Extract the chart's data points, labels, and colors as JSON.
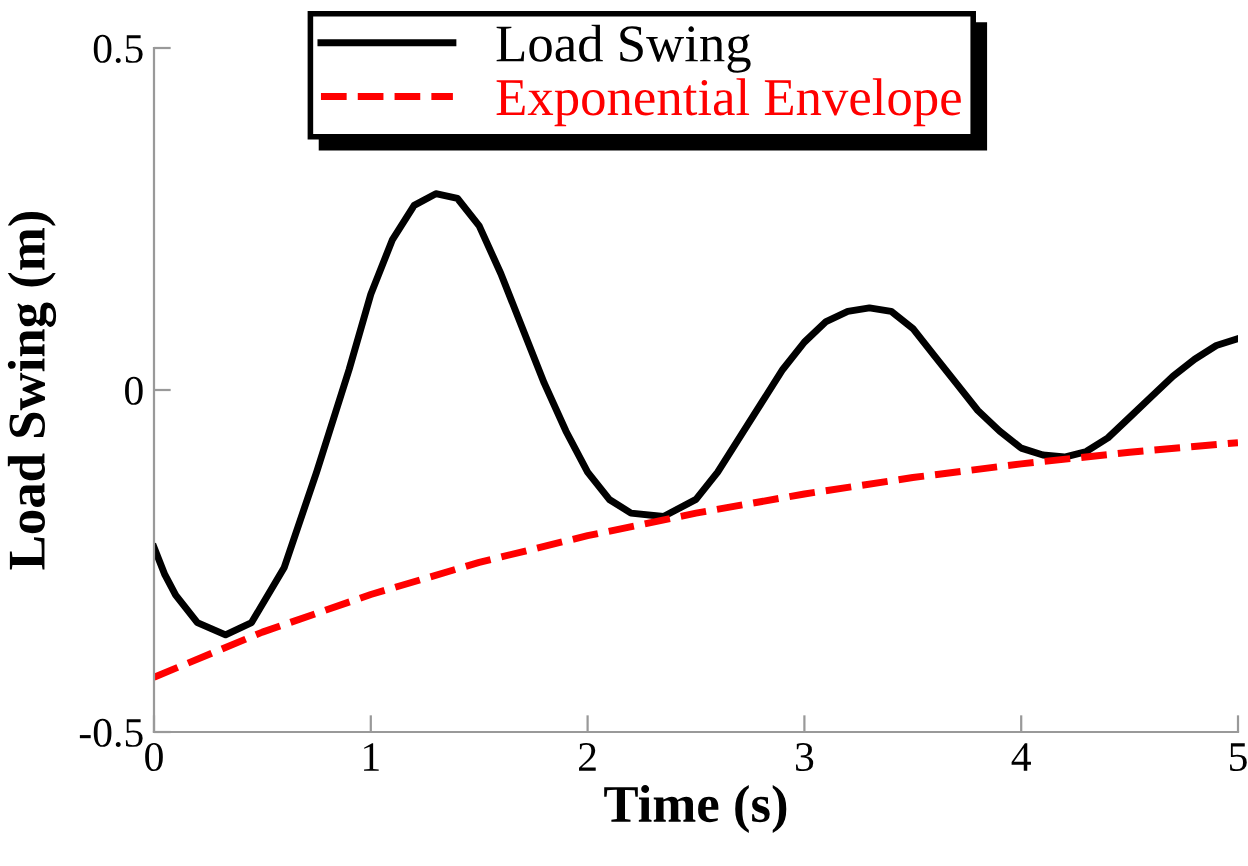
{
  "chart_data": {
    "type": "line",
    "xlabel": "Time (s)",
    "ylabel": "Load Swing (m)",
    "xlim": [
      0,
      5
    ],
    "xticks": [
      0,
      1,
      2,
      3,
      4,
      5
    ],
    "ylim": [
      -0.5,
      0.5
    ],
    "yticks": [
      -0.5,
      0,
      0.5
    ],
    "grid": false,
    "legend": "top",
    "series": [
      {
        "name": "Load Swing",
        "color": "#000000",
        "line_style": "solid",
        "x": [
          0,
          0.05,
          0.1,
          0.2,
          0.33,
          0.45,
          0.6,
          0.75,
          0.9,
          1.0,
          1.1,
          1.2,
          1.3,
          1.4,
          1.5,
          1.6,
          1.7,
          1.8,
          1.9,
          2.0,
          2.1,
          2.2,
          2.35,
          2.5,
          2.6,
          2.7,
          2.8,
          2.9,
          3.0,
          3.1,
          3.2,
          3.3,
          3.4,
          3.5,
          3.6,
          3.7,
          3.8,
          3.9,
          4.0,
          4.1,
          4.2,
          4.3,
          4.4,
          4.5,
          4.6,
          4.7,
          4.8,
          4.9,
          5.0
        ],
        "values": [
          -0.23,
          -0.27,
          -0.3,
          -0.34,
          -0.358,
          -0.34,
          -0.26,
          -0.12,
          0.03,
          0.14,
          0.22,
          0.27,
          0.287,
          0.28,
          0.24,
          0.17,
          0.09,
          0.01,
          -0.06,
          -0.12,
          -0.16,
          -0.18,
          -0.185,
          -0.16,
          -0.12,
          -0.07,
          -0.02,
          0.03,
          0.07,
          0.1,
          0.115,
          0.12,
          0.115,
          0.09,
          0.05,
          0.01,
          -0.03,
          -0.06,
          -0.085,
          -0.095,
          -0.098,
          -0.09,
          -0.07,
          -0.04,
          -0.01,
          0.02,
          0.045,
          0.065,
          0.075
        ]
      },
      {
        "name": "Exponential Envelope",
        "color": "#ff0000",
        "line_style": "dashed",
        "x": [
          0,
          0.5,
          1,
          1.5,
          2,
          2.5,
          3,
          3.5,
          4,
          4.5,
          5
        ],
        "values": [
          -0.42,
          -0.354,
          -0.299,
          -0.252,
          -0.213,
          -0.18,
          -0.152,
          -0.128,
          -0.108,
          -0.091,
          -0.077
        ]
      }
    ]
  }
}
